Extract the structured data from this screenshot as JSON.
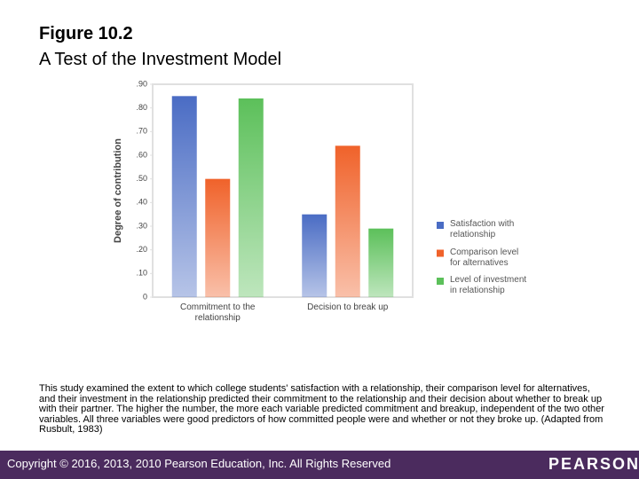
{
  "chart_data": {
    "type": "bar",
    "title": "Figure 10.2",
    "subtitle": "A Test of the Investment Model",
    "y_label": "Degree of contribution",
    "categories": [
      "Commitment to the relationship",
      "Decision to break up"
    ],
    "series": [
      {
        "name": "Satisfaction with relationship",
        "color": "#4a6cc4",
        "values": [
          0.85,
          0.35
        ]
      },
      {
        "name": "Comparison level for alternatives",
        "color": "#f0622a",
        "values": [
          0.5,
          0.64
        ]
      },
      {
        "name": "Level of investment in relationship",
        "color": "#5cc05a",
        "values": [
          0.84,
          0.29
        ]
      }
    ],
    "ylim": [
      0,
      0.9
    ],
    "yticks": [
      0,
      {
        "value": 0.1,
        "label": ".10"
      },
      {
        "value": 0.2,
        "label": ".20"
      },
      {
        "value": 0.3,
        "label": ".30"
      },
      {
        "value": 0.4,
        "label": ".40"
      },
      {
        "value": 0.5,
        "label": ".50"
      },
      {
        "value": 0.6,
        "label": ".60"
      },
      {
        "value": 0.7,
        "label": ".70"
      },
      {
        "value": 0.8,
        "label": ".80"
      },
      {
        "value": 0.9,
        "label": ".90"
      }
    ],
    "grid": false,
    "legend": "right"
  },
  "caption": "This study examined the extent to which college students' satisfaction with a relationship, their comparison level for alternatives, and their investment in the relationship predicted their commitment to the relationship and their decision about whether to break up with their partner. The higher the number, the more each variable predicted commitment and breakup, independent of the two other variables. All three variables were good predictors of how committed people were and whether or not they broke up. (Adapted from Rusbult, 1983)",
  "footer": {
    "copyright": "Copyright © 2016, 2013, 2010 Pearson Education, Inc. All Rights Reserved",
    "logo": "PEARSON"
  }
}
